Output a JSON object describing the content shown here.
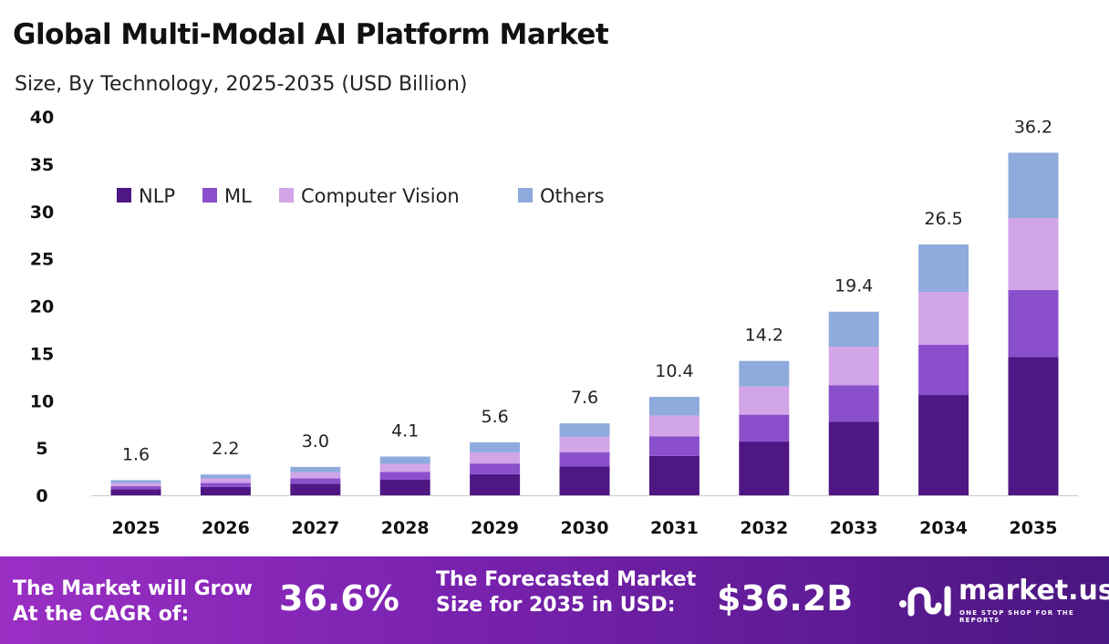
{
  "title": "Global Multi-Modal AI Platform Market",
  "subtitle": "Size, By Technology, 2025-2035 (USD Billion)",
  "chart_data": {
    "type": "bar",
    "stacked": true,
    "categories": [
      "2025",
      "2026",
      "2027",
      "2028",
      "2029",
      "2030",
      "2031",
      "2032",
      "2033",
      "2034",
      "2035"
    ],
    "totals": [
      1.6,
      2.2,
      3.0,
      4.1,
      5.6,
      7.6,
      10.4,
      14.2,
      19.4,
      26.5,
      36.2
    ],
    "total_labels": [
      "1.6",
      "2.2",
      "3.0",
      "4.1",
      "5.6",
      "7.6",
      "10.4",
      "14.2",
      "19.4",
      "26.5",
      "36.2"
    ],
    "series": [
      {
        "name": "NLP",
        "color": "#4e1784",
        "values": [
          0.64,
          0.88,
          1.2,
          1.64,
          2.24,
          3.04,
          4.16,
          5.68,
          7.76,
          10.6,
          14.6
        ]
      },
      {
        "name": "ML",
        "color": "#8b4fcb",
        "values": [
          0.32,
          0.44,
          0.6,
          0.82,
          1.12,
          1.52,
          2.08,
          2.84,
          3.88,
          5.3,
          7.1
        ]
      },
      {
        "name": "Computer Vision",
        "color": "#d2a4e8",
        "values": [
          0.34,
          0.46,
          0.63,
          0.86,
          1.18,
          1.6,
          2.18,
          2.98,
          4.07,
          5.57,
          7.6
        ]
      },
      {
        "name": "Others",
        "color": "#8faadc",
        "values": [
          0.3,
          0.42,
          0.57,
          0.78,
          1.06,
          1.44,
          1.98,
          2.7,
          3.69,
          5.03,
          6.9
        ]
      }
    ],
    "yticks": [
      "0",
      "5",
      "10",
      "15",
      "20",
      "25",
      "30",
      "35",
      "40"
    ],
    "ylim": [
      0,
      40
    ],
    "grid": false,
    "legend": "top-left"
  },
  "footer": {
    "cagr_label_1": "The Market will Grow",
    "cagr_label_2": "At the CAGR of:",
    "cagr_value": "36.6%",
    "forecast_label_1": "The Forecasted Market",
    "forecast_label_2": "Size for 2035 in USD:",
    "forecast_value": "$36.2B",
    "logo_name": "market.us",
    "logo_tagline": "ONE STOP SHOP FOR THE REPORTS"
  }
}
